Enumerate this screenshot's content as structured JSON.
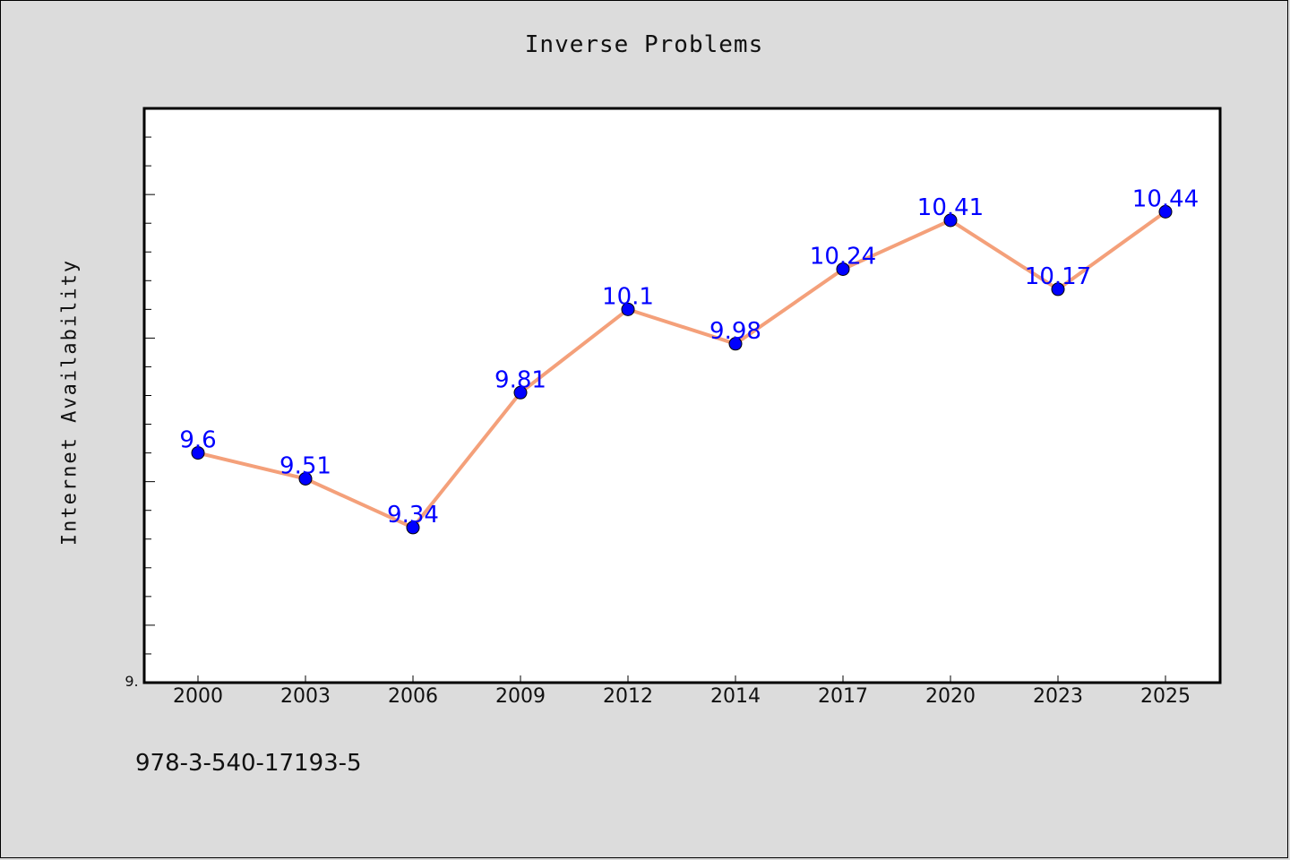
{
  "page": {
    "title": "Inverse Problems",
    "footer_code": "978-3-540-17193-5"
  },
  "colors": {
    "background": "#dcdcdc",
    "plot_background": "#ffffff",
    "line": "#f4a07a",
    "marker": "#0000ff",
    "data_label": "#0000ff"
  },
  "chart_data": {
    "type": "line",
    "title": "Inverse Problems",
    "xlabel": "",
    "ylabel": "Internet Availability",
    "categories": [
      "2000",
      "2003",
      "2006",
      "2009",
      "2012",
      "2014",
      "2017",
      "2020",
      "2023",
      "2025"
    ],
    "series": [
      {
        "values": [
          9.6,
          9.51,
          9.34,
          9.81,
          10.1,
          9.98,
          10.24,
          10.41,
          10.17,
          10.44
        ]
      }
    ],
    "data_labels": [
      "9.6",
      "9.51",
      "9.34",
      "9.81",
      "10.1",
      "9.98",
      "10.24",
      "10.41",
      "10.17",
      "10.44"
    ],
    "ylim": [
      8.8,
      10.8
    ],
    "y_tick_labels": [
      "9."
    ],
    "grid": false,
    "legend": "none"
  }
}
